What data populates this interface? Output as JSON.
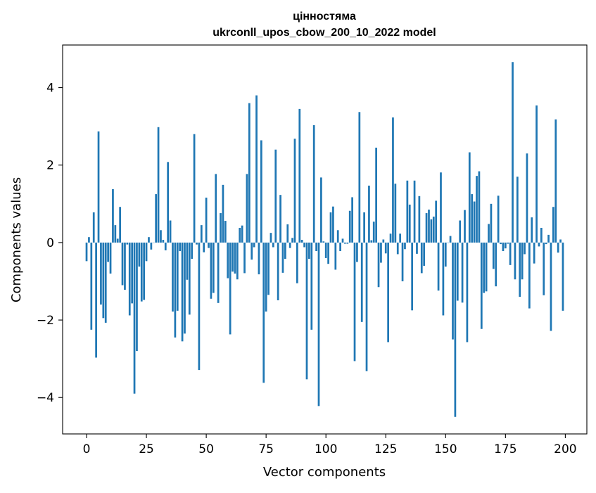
{
  "chart_data": {
    "type": "bar",
    "title": "цінностяма",
    "subtitle": "ukrconll_upos_cbow_200_10_2022 model",
    "xlabel": "Vector components",
    "ylabel": "Components values",
    "xlim": [
      -10,
      209
    ],
    "ylim": [
      -4.94,
      5.1
    ],
    "xticks": [
      0,
      25,
      50,
      75,
      100,
      125,
      150,
      175,
      200
    ],
    "xtick_labels": [
      "0",
      "25",
      "50",
      "75",
      "100",
      "125",
      "150",
      "175",
      "200"
    ],
    "yticks": [
      -4,
      -2,
      0,
      2,
      4
    ],
    "ytick_labels": [
      "−4",
      "−2",
      "0",
      "2",
      "4"
    ],
    "grid": false,
    "bar_color": "#1f77b4",
    "x": [
      0,
      1,
      2,
      3,
      4,
      5,
      6,
      7,
      8,
      9,
      10,
      11,
      12,
      13,
      14,
      15,
      16,
      17,
      18,
      19,
      20,
      21,
      22,
      23,
      24,
      25,
      26,
      27,
      28,
      29,
      30,
      31,
      32,
      33,
      34,
      35,
      36,
      37,
      38,
      39,
      40,
      41,
      42,
      43,
      44,
      45,
      46,
      47,
      48,
      49,
      50,
      51,
      52,
      53,
      54,
      55,
      56,
      57,
      58,
      59,
      60,
      61,
      62,
      63,
      64,
      65,
      66,
      67,
      68,
      69,
      70,
      71,
      72,
      73,
      74,
      75,
      76,
      77,
      78,
      79,
      80,
      81,
      82,
      83,
      84,
      85,
      86,
      87,
      88,
      89,
      90,
      91,
      92,
      93,
      94,
      95,
      96,
      97,
      98,
      99,
      100,
      101,
      102,
      103,
      104,
      105,
      106,
      107,
      108,
      109,
      110,
      111,
      112,
      113,
      114,
      115,
      116,
      117,
      118,
      119,
      120,
      121,
      122,
      123,
      124,
      125,
      126,
      127,
      128,
      129,
      130,
      131,
      132,
      133,
      134,
      135,
      136,
      137,
      138,
      139,
      140,
      141,
      142,
      143,
      144,
      145,
      146,
      147,
      148,
      149,
      150,
      151,
      152,
      153,
      154,
      155,
      156,
      157,
      158,
      159,
      160,
      161,
      162,
      163,
      164,
      165,
      166,
      167,
      168,
      169,
      170,
      171,
      172,
      173,
      174,
      175,
      176,
      177,
      178,
      179,
      180,
      181,
      182,
      183,
      184,
      185,
      186,
      187,
      188,
      189,
      190,
      191,
      192,
      193,
      194,
      195,
      196,
      197,
      198,
      199
    ],
    "values": [
      -0.48,
      0.14,
      -2.25,
      0.78,
      -2.97,
      2.87,
      -1.6,
      -1.95,
      -2.07,
      -0.5,
      -0.8,
      1.38,
      0.45,
      0.1,
      0.92,
      -1.1,
      -1.22,
      -0.05,
      -1.88,
      -1.57,
      -3.9,
      -2.8,
      -0.62,
      -1.52,
      -1.48,
      -0.48,
      0.14,
      -0.18,
      0.0,
      1.25,
      2.98,
      0.32,
      0.07,
      -0.2,
      2.08,
      0.57,
      -1.78,
      -2.45,
      -1.76,
      -0.22,
      -2.55,
      -2.35,
      -0.96,
      -1.86,
      -0.42,
      2.8,
      -0.05,
      -3.29,
      0.45,
      -0.25,
      1.16,
      -0.14,
      -1.45,
      -1.3,
      1.77,
      -1.56,
      0.76,
      1.49,
      0.56,
      -0.92,
      -2.37,
      -0.75,
      -0.8,
      -0.95,
      0.38,
      0.44,
      -0.79,
      1.77,
      3.6,
      -0.44,
      -0.12,
      3.8,
      -0.82,
      2.64,
      -3.62,
      -1.78,
      -1.35,
      0.25,
      -0.12,
      2.4,
      -1.49,
      1.23,
      -0.78,
      -0.42,
      0.47,
      -0.14,
      0.12,
      2.68,
      -1.05,
      3.45,
      0.07,
      -0.12,
      -3.53,
      -0.42,
      -2.25,
      3.03,
      -0.22,
      -4.22,
      1.68,
      0.03,
      -0.4,
      -0.55,
      0.78,
      0.93,
      -0.7,
      0.32,
      -0.22,
      0.1,
      -0.03,
      -0.03,
      0.82,
      1.17,
      -3.06,
      -0.5,
      3.37,
      -2.05,
      0.78,
      -3.32,
      1.47,
      0.06,
      0.54,
      2.45,
      -1.15,
      -0.52,
      0.08,
      -0.28,
      -2.57,
      0.23,
      3.23,
      1.52,
      -0.3,
      0.23,
      -1.0,
      -0.17,
      1.6,
      0.98,
      -1.75,
      1.6,
      -0.29,
      1.2,
      -0.79,
      -0.6,
      0.76,
      0.85,
      0.6,
      0.67,
      1.08,
      -1.24,
      1.81,
      -1.88,
      -0.62,
      0.0,
      0.17,
      -2.5,
      -4.5,
      -1.5,
      0.57,
      -1.55,
      0.84,
      -2.57,
      2.33,
      1.25,
      1.06,
      1.72,
      1.84,
      -2.23,
      -1.3,
      -1.26,
      0.48,
      1.0,
      -0.68,
      -1.13,
      1.21,
      -0.04,
      -0.22,
      -0.15,
      -0.03,
      -0.58,
      4.66,
      -0.95,
      1.7,
      -1.4,
      -0.95,
      -0.3,
      2.3,
      -1.7,
      0.65,
      -0.54,
      3.54,
      -0.1,
      0.38,
      -1.36,
      -0.04,
      0.2,
      -2.28,
      0.92,
      3.18,
      -0.26,
      0.08,
      -1.76
    ]
  }
}
